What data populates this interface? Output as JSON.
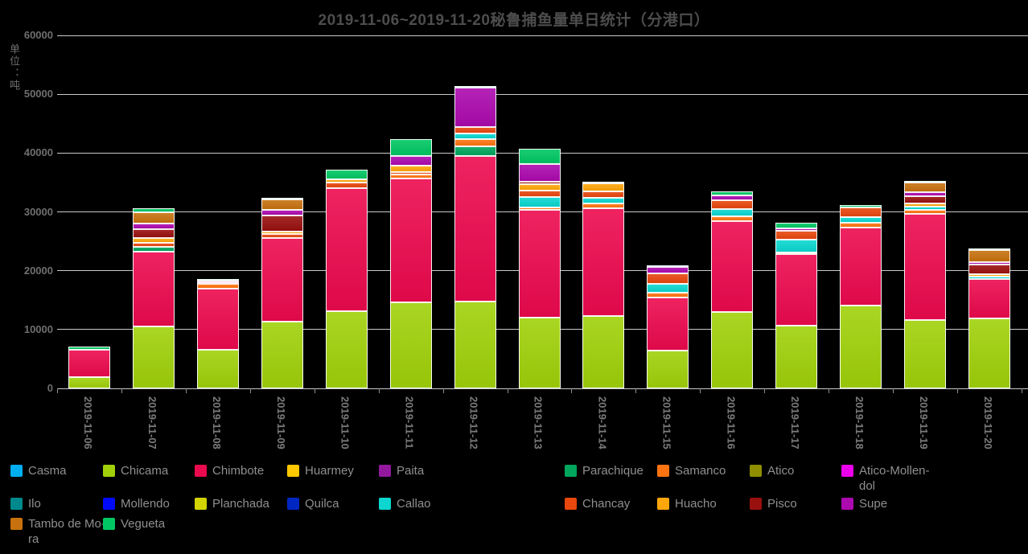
{
  "chart_data": {
    "type": "bar",
    "stacked": true,
    "title": "2019-11-06~2019-11-20秘鲁捕鱼量单日统计（分港口）",
    "unit_label": "单位：吨",
    "background_color": "#000000",
    "grid_color": "#c9c9c9",
    "ylim": [
      0,
      60000
    ],
    "yticks": [
      0,
      10000,
      20000,
      30000,
      40000,
      50000,
      60000
    ],
    "ytick_labels": [
      "0",
      "10000",
      "20000",
      "30000",
      "40000",
      "50000",
      "60000"
    ],
    "legend_position": "bottom",
    "categories": [
      "2019-11-06",
      "2019-11-07",
      "2019-11-08",
      "2019-11-09",
      "2019-11-10",
      "2019-11-11",
      "2019-11-12",
      "2019-11-13",
      "2019-11-14",
      "2019-11-15",
      "2019-11-16",
      "2019-11-17",
      "2019-11-18",
      "2019-11-19",
      "2019-11-20"
    ],
    "series": [
      {
        "name": "Casma",
        "label": "Casma",
        "color": "#00AEEF",
        "values": [
          0,
          0,
          0,
          0,
          0,
          0,
          0,
          0,
          0,
          0,
          0,
          0,
          0,
          0,
          0
        ]
      },
      {
        "name": "Chicama",
        "label": "Chicama",
        "color": "#A0D10A",
        "values": [
          1900,
          10500,
          6500,
          11300,
          13100,
          14600,
          14700,
          12000,
          12300,
          6400,
          13000,
          10700,
          14100,
          11600,
          11900
        ]
      },
      {
        "name": "Chimbote",
        "label": "Chimbote",
        "color": "#EC0A4E",
        "values": [
          4700,
          12700,
          10400,
          14300,
          21000,
          21100,
          24800,
          18300,
          18300,
          9100,
          15500,
          12100,
          13300,
          18000,
          6700
        ]
      },
      {
        "name": "Huarmey",
        "label": "Huarmey",
        "color": "#FFC800",
        "values": [
          0,
          0,
          0,
          0,
          0,
          0,
          0,
          0,
          0,
          0,
          0,
          0,
          0,
          0,
          0
        ]
      },
      {
        "name": "Paita",
        "label": "Paita",
        "color": "#93189E",
        "values": [
          0,
          0,
          0,
          0,
          0,
          0,
          0,
          0,
          0,
          0,
          0,
          0,
          0,
          0,
          0
        ]
      },
      {
        "name": "Parachique",
        "label": "Parachique",
        "color": "#00A65C",
        "values": [
          0,
          800,
          0,
          0,
          0,
          0,
          1650,
          0,
          0,
          0,
          0,
          0,
          0,
          0,
          0
        ]
      },
      {
        "name": "Samanco",
        "label": "Samanco",
        "color": "#FF7310",
        "values": [
          0,
          0,
          800,
          0,
          0,
          700,
          1200,
          400,
          800,
          800,
          800,
          300,
          800,
          800,
          0
        ]
      },
      {
        "name": "Atico",
        "label": "Atico",
        "color": "#8E8E00",
        "values": [
          0,
          0,
          0,
          0,
          0,
          0,
          0,
          0,
          0,
          0,
          0,
          0,
          0,
          0,
          0
        ]
      },
      {
        "name": "Atico-Mollendol",
        "label": "Atico-Mollen-\ndol",
        "color": "#EA00EA",
        "values": [
          0,
          0,
          300,
          0,
          0,
          0,
          0,
          0,
          0,
          0,
          0,
          0,
          0,
          0,
          0
        ]
      },
      {
        "name": "Ilo",
        "label": "Ilo",
        "color": "#00898D",
        "values": [
          0,
          0,
          0,
          0,
          0,
          0,
          0,
          0,
          0,
          0,
          0,
          0,
          0,
          0,
          0
        ]
      },
      {
        "name": "Mollendo",
        "label": "Mollendo",
        "color": "#000AFA",
        "values": [
          0,
          0,
          0,
          0,
          0,
          0,
          0,
          0,
          0,
          0,
          0,
          0,
          0,
          0,
          0
        ]
      },
      {
        "name": "Planchada",
        "label": "Planchada",
        "color": "#D2D400",
        "values": [
          0,
          0,
          0,
          0,
          0,
          0,
          0,
          0,
          0,
          0,
          0,
          0,
          0,
          0,
          0
        ]
      },
      {
        "name": "Quilca",
        "label": "Quilca",
        "color": "#0026C2",
        "values": [
          0,
          0,
          0,
          0,
          0,
          0,
          0,
          0,
          0,
          0,
          0,
          0,
          0,
          0,
          0
        ]
      },
      {
        "name": "Callao",
        "label": "Callao",
        "color": "#0BD7D0",
        "values": [
          0,
          0,
          0,
          0,
          0,
          0,
          1000,
          1900,
          950,
          1500,
          1250,
          2200,
          950,
          500,
          450
        ]
      },
      {
        "name": "Chancay",
        "label": "Chancay",
        "color": "#E8470E",
        "values": [
          0,
          800,
          0,
          700,
          900,
          350,
          1100,
          1100,
          1100,
          1800,
          1500,
          1500,
          1600,
          0,
          0
        ]
      },
      {
        "name": "Huacho",
        "label": "Huacho",
        "color": "#FFA60A",
        "values": [
          0,
          700,
          0,
          400,
          500,
          1100,
          0,
          1100,
          1400,
          0,
          0,
          0,
          0,
          500,
          300
        ]
      },
      {
        "name": "Pisco",
        "label": "Pisco",
        "color": "#99100F",
        "values": [
          0,
          1600,
          0,
          2700,
          0,
          0,
          0,
          400,
          0,
          0,
          0,
          0,
          0,
          1250,
          1650
        ]
      },
      {
        "name": "Supe",
        "label": "Supe",
        "color": "#AC0AAE",
        "values": [
          0,
          950,
          300,
          950,
          0,
          1700,
          6700,
          3000,
          0,
          1100,
          700,
          400,
          0,
          700,
          400
        ]
      },
      {
        "name": "Tambo de Mora",
        "label": "Tambo de Mo-\nra",
        "color": "#C8720F",
        "values": [
          0,
          1900,
          0,
          1800,
          0,
          0,
          0,
          0,
          0,
          0,
          0,
          0,
          0,
          1600,
          2100
        ]
      },
      {
        "name": "Vegueta",
        "label": "Vegueta",
        "color": "#00C763",
        "values": [
          500,
          700,
          300,
          250,
          1700,
          2800,
          250,
          2500,
          270,
          200,
          800,
          950,
          400,
          250,
          150
        ]
      }
    ]
  }
}
